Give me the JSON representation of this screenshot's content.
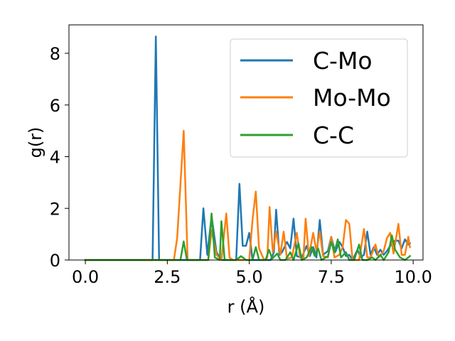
{
  "chart_data": {
    "type": "line",
    "title": "",
    "xlabel": "r (Å)",
    "ylabel": "g(r)",
    "xlim": [
      -0.5,
      10.3
    ],
    "ylim": [
      0,
      9.1
    ],
    "xticks": [
      0.0,
      2.5,
      5.0,
      7.5,
      10.0
    ],
    "xtick_labels": [
      "0.0",
      "2.5",
      "5.0",
      "7.5",
      "10.0"
    ],
    "yticks": [
      0,
      2,
      4,
      6,
      8
    ],
    "ytick_labels": [
      "0",
      "2",
      "4",
      "6",
      "8"
    ],
    "grid": false,
    "legend_position": "top-right",
    "series": [
      {
        "name": "C-Mo",
        "color": "#1f77b4",
        "points": [
          [
            0,
            0
          ],
          [
            2.05,
            0
          ],
          [
            2.15,
            8.65
          ],
          [
            2.25,
            0
          ],
          [
            3.5,
            0
          ],
          [
            3.6,
            2.0
          ],
          [
            3.72,
            0.2
          ],
          [
            3.85,
            1.7
          ],
          [
            4.0,
            0.3
          ],
          [
            4.15,
            0
          ],
          [
            4.6,
            0
          ],
          [
            4.7,
            2.95
          ],
          [
            4.8,
            0.55
          ],
          [
            4.9,
            0.55
          ],
          [
            5.0,
            1.05
          ],
          [
            5.1,
            0
          ],
          [
            5.65,
            0
          ],
          [
            5.75,
            0.3
          ],
          [
            5.82,
            1.95
          ],
          [
            5.92,
            0.2
          ],
          [
            6.0,
            0.3
          ],
          [
            6.15,
            0.7
          ],
          [
            6.25,
            0.45
          ],
          [
            6.35,
            1.6
          ],
          [
            6.45,
            0.15
          ],
          [
            6.6,
            0.1
          ],
          [
            6.75,
            0.55
          ],
          [
            6.85,
            0.15
          ],
          [
            6.95,
            0.5
          ],
          [
            7.05,
            0.1
          ],
          [
            7.15,
            1.55
          ],
          [
            7.25,
            0.2
          ],
          [
            7.4,
            0.35
          ],
          [
            7.5,
            0.9
          ],
          [
            7.62,
            0.3
          ],
          [
            7.75,
            0.7
          ],
          [
            7.85,
            0.5
          ],
          [
            7.95,
            0.15
          ],
          [
            8.05,
            0.2
          ],
          [
            8.15,
            0.0
          ],
          [
            8.3,
            0.4
          ],
          [
            8.4,
            0.1
          ],
          [
            8.5,
            0.2
          ],
          [
            8.6,
            1.1
          ],
          [
            8.7,
            0.2
          ],
          [
            8.8,
            0.5
          ],
          [
            8.9,
            0.2
          ],
          [
            9.0,
            0.4
          ],
          [
            9.1,
            0.2
          ],
          [
            9.2,
            0.35
          ],
          [
            9.35,
            0.65
          ],
          [
            9.45,
            0.75
          ],
          [
            9.55,
            0.75
          ],
          [
            9.65,
            0.45
          ],
          [
            9.75,
            0.8
          ],
          [
            9.85,
            0.6
          ],
          [
            9.9,
            0.65
          ]
        ]
      },
      {
        "name": "Mo-Mo",
        "color": "#ff7f0e",
        "points": [
          [
            0,
            0
          ],
          [
            2.7,
            0
          ],
          [
            2.8,
            0.85
          ],
          [
            3.0,
            5.0
          ],
          [
            3.12,
            0
          ],
          [
            3.75,
            0
          ],
          [
            3.85,
            1.15
          ],
          [
            4.0,
            0.2
          ],
          [
            4.15,
            0
          ],
          [
            4.3,
            1.8
          ],
          [
            4.4,
            0.1
          ],
          [
            4.5,
            0
          ],
          [
            5.0,
            0
          ],
          [
            5.1,
            1.55
          ],
          [
            5.2,
            2.65
          ],
          [
            5.3,
            0.45
          ],
          [
            5.45,
            0
          ],
          [
            5.55,
            0.1
          ],
          [
            5.62,
            2.05
          ],
          [
            5.72,
            0.3
          ],
          [
            5.82,
            1.1
          ],
          [
            5.95,
            0.2
          ],
          [
            6.05,
            1.1
          ],
          [
            6.15,
            0.05
          ],
          [
            6.3,
            0.1
          ],
          [
            6.45,
            1.05
          ],
          [
            6.55,
            0.1
          ],
          [
            6.65,
            0.05
          ],
          [
            6.72,
            1.6
          ],
          [
            6.82,
            0.15
          ],
          [
            6.95,
            1.05
          ],
          [
            7.05,
            0.35
          ],
          [
            7.15,
            1.1
          ],
          [
            7.25,
            0.15
          ],
          [
            7.4,
            0.1
          ],
          [
            7.5,
            0.9
          ],
          [
            7.6,
            0.1
          ],
          [
            7.75,
            0.2
          ],
          [
            7.85,
            0.5
          ],
          [
            7.95,
            1.55
          ],
          [
            8.05,
            1.4
          ],
          [
            8.15,
            0.0
          ],
          [
            8.35,
            0.0
          ],
          [
            8.5,
            1.2
          ],
          [
            8.6,
            0.1
          ],
          [
            8.7,
            0.1
          ],
          [
            8.85,
            0.6
          ],
          [
            8.95,
            0.1
          ],
          [
            9.1,
            0.35
          ],
          [
            9.2,
            0.85
          ],
          [
            9.3,
            1.05
          ],
          [
            9.4,
            0.25
          ],
          [
            9.55,
            1.4
          ],
          [
            9.65,
            0.2
          ],
          [
            9.75,
            0.2
          ],
          [
            9.85,
            0.9
          ],
          [
            9.9,
            0.5
          ]
        ]
      },
      {
        "name": "C-C",
        "color": "#2ca02c",
        "points": [
          [
            0,
            0
          ],
          [
            2.9,
            0
          ],
          [
            3.0,
            0.72
          ],
          [
            3.1,
            0
          ],
          [
            3.75,
            0
          ],
          [
            3.85,
            1.8
          ],
          [
            3.95,
            0.1
          ],
          [
            4.1,
            0
          ],
          [
            4.15,
            1.5
          ],
          [
            4.25,
            0
          ],
          [
            4.6,
            0
          ],
          [
            4.75,
            0.15
          ],
          [
            4.9,
            0
          ],
          [
            5.1,
            0
          ],
          [
            5.2,
            0.5
          ],
          [
            5.3,
            0
          ],
          [
            5.5,
            0
          ],
          [
            5.6,
            0.4
          ],
          [
            5.7,
            0.05
          ],
          [
            5.85,
            0.25
          ],
          [
            5.95,
            0
          ],
          [
            6.1,
            0
          ],
          [
            6.25,
            0.3
          ],
          [
            6.35,
            0
          ],
          [
            6.5,
            0.65
          ],
          [
            6.6,
            0
          ],
          [
            6.75,
            0.1
          ],
          [
            6.9,
            0.5
          ],
          [
            7.0,
            0.15
          ],
          [
            7.1,
            0.45
          ],
          [
            7.2,
            0
          ],
          [
            7.4,
            0.15
          ],
          [
            7.5,
            0.7
          ],
          [
            7.6,
            0.3
          ],
          [
            7.7,
            0.8
          ],
          [
            7.8,
            0.1
          ],
          [
            7.95,
            0.3
          ],
          [
            8.05,
            0.0
          ],
          [
            8.2,
            0
          ],
          [
            8.35,
            0.6
          ],
          [
            8.45,
            0
          ],
          [
            8.6,
            0
          ],
          [
            8.75,
            0.1
          ],
          [
            8.85,
            0
          ],
          [
            9.0,
            0.2
          ],
          [
            9.1,
            0
          ],
          [
            9.25,
            0.3
          ],
          [
            9.35,
            0.95
          ],
          [
            9.45,
            0.4
          ],
          [
            9.6,
            0.1
          ],
          [
            9.75,
            0.0
          ],
          [
            9.85,
            0.1
          ],
          [
            9.9,
            0.15
          ]
        ]
      }
    ]
  }
}
